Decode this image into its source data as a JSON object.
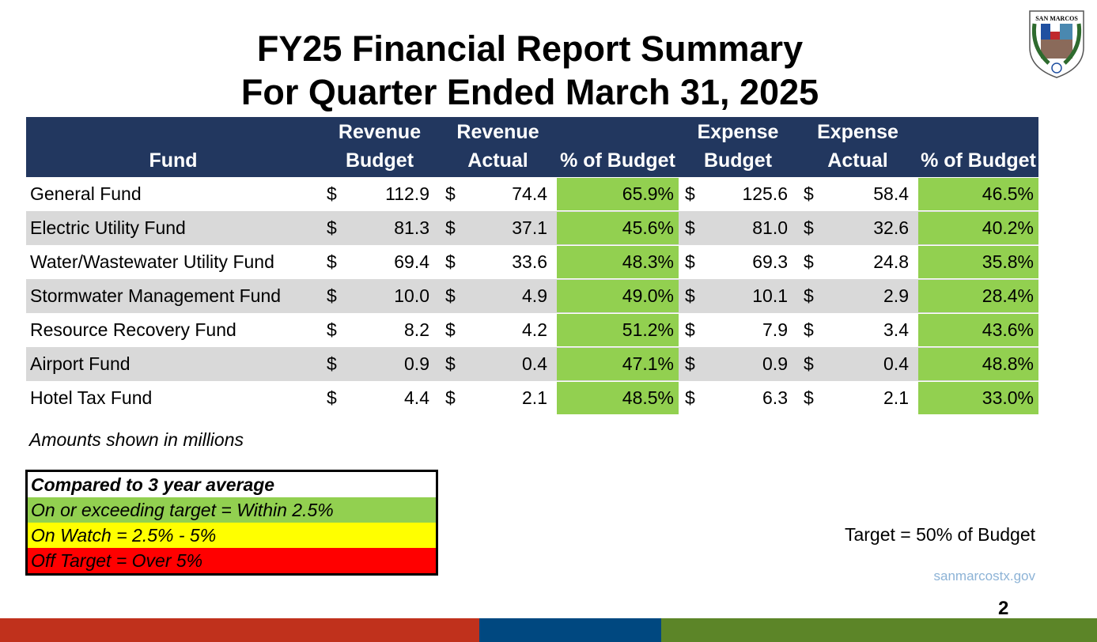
{
  "title_line1": "FY25 Financial Report Summary",
  "title_line2": "For Quarter Ended March 31, 2025",
  "logo_text": "THE CITY OF SAN MARCOS",
  "table": {
    "headers": [
      "Fund",
      "Revenue Budget",
      "Revenue Actual",
      "% of Budget",
      "Expense Budget",
      "Expense Actual",
      "% of Budget"
    ],
    "currency_symbol": "$",
    "rows": [
      {
        "fund": "General Fund",
        "rev_budget": "112.9",
        "rev_actual": "74.4",
        "rev_pct": "65.9%",
        "exp_budget": "125.6",
        "exp_actual": "58.4",
        "exp_pct": "46.5%"
      },
      {
        "fund": "Electric Utility Fund",
        "rev_budget": "81.3",
        "rev_actual": "37.1",
        "rev_pct": "45.6%",
        "exp_budget": "81.0",
        "exp_actual": "32.6",
        "exp_pct": "40.2%"
      },
      {
        "fund": "Water/Wastewater Utility Fund",
        "rev_budget": "69.4",
        "rev_actual": "33.6",
        "rev_pct": "48.3%",
        "exp_budget": "69.3",
        "exp_actual": "24.8",
        "exp_pct": "35.8%"
      },
      {
        "fund": "Stormwater Management Fund",
        "rev_budget": "10.0",
        "rev_actual": "4.9",
        "rev_pct": "49.0%",
        "exp_budget": "10.1",
        "exp_actual": "2.9",
        "exp_pct": "28.4%"
      },
      {
        "fund": "Resource Recovery Fund",
        "rev_budget": "8.2",
        "rev_actual": "4.2",
        "rev_pct": "51.2%",
        "exp_budget": "7.9",
        "exp_actual": "3.4",
        "exp_pct": "43.6%"
      },
      {
        "fund": "Airport Fund",
        "rev_budget": "0.9",
        "rev_actual": "0.4",
        "rev_pct": "47.1%",
        "exp_budget": "0.9",
        "exp_actual": "0.4",
        "exp_pct": "48.8%"
      },
      {
        "fund": "Hotel Tax Fund",
        "rev_budget": "4.4",
        "rev_actual": "2.1",
        "rev_pct": "48.5%",
        "exp_budget": "6.3",
        "exp_actual": "2.1",
        "exp_pct": "33.0%"
      }
    ]
  },
  "note": "Amounts shown in millions",
  "legend": {
    "title": "Compared to 3 year average",
    "green": "On or exceeding target = Within 2.5%",
    "yellow": "On Watch = 2.5% - 5%",
    "red": "Off Target = Over 5%"
  },
  "colors": {
    "header": "#22375f",
    "green": "#92d050",
    "yellow": "#ffff00",
    "red": "#ff0000"
  },
  "target": "Target = 50% of Budget",
  "website": "sanmarcostx.gov",
  "page_number": "2"
}
